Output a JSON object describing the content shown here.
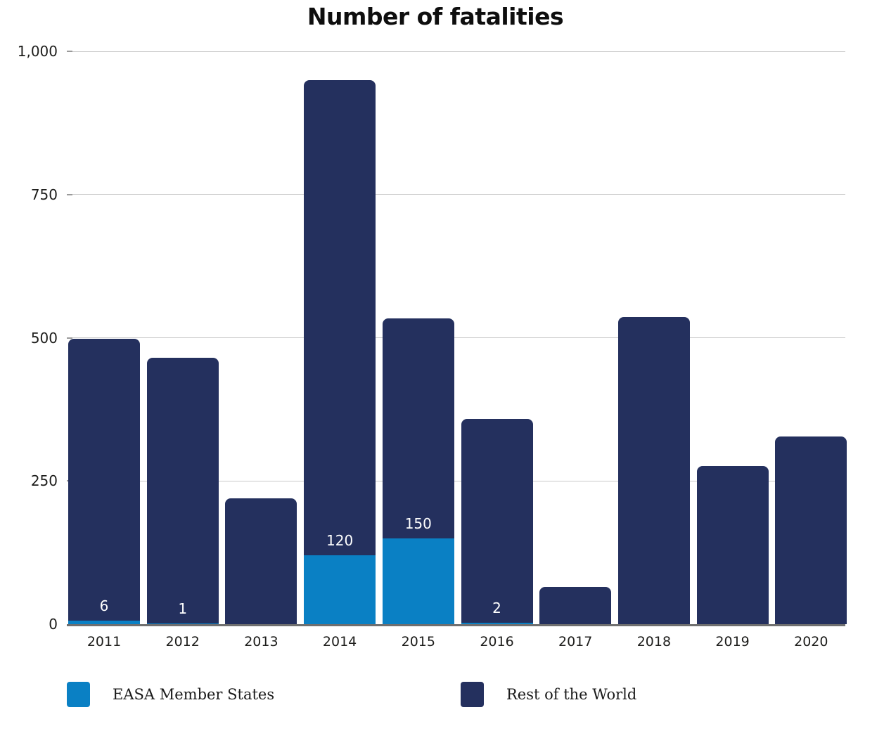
{
  "title": "Number of fatalities",
  "chart_data": {
    "type": "bar",
    "stacked": true,
    "title": "Number of fatalities",
    "xlabel": "",
    "ylabel": "",
    "ylim": [
      0,
      1000
    ],
    "grid": true,
    "legend_position": "bottom",
    "categories": [
      "2011",
      "2012",
      "2013",
      "2014",
      "2015",
      "2016",
      "2017",
      "2018",
      "2019",
      "2020"
    ],
    "series": [
      {
        "name": "EASA Member States",
        "color": "#0a80c4",
        "values": [
          6,
          1,
          0,
          120,
          150,
          2,
          0,
          0,
          0,
          0
        ]
      },
      {
        "name": "Rest of the World",
        "color": "#24305e",
        "values": [
          492,
          464,
          220,
          830,
          384,
          356,
          65,
          536,
          276,
          328
        ]
      }
    ],
    "bar_value_labels": [
      "6",
      "1",
      "",
      "120",
      "150",
      "2",
      "",
      "",
      "",
      ""
    ],
    "yticks": [
      {
        "label": "0",
        "value": 0
      },
      {
        "label": "250",
        "value": 250
      },
      {
        "label": "500",
        "value": 500
      },
      {
        "label": "750",
        "value": 750
      },
      {
        "label": "1,000",
        "value": 1000
      }
    ]
  },
  "legend": {
    "items": [
      {
        "label": "EASA Member States"
      },
      {
        "label": "Rest of the World"
      }
    ]
  }
}
